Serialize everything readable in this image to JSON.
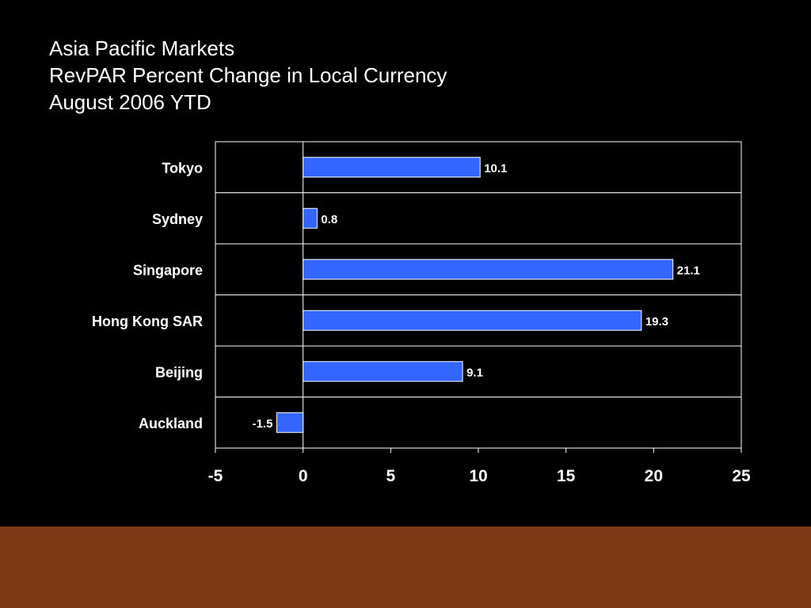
{
  "slide": {
    "title_lines": [
      "Asia Pacific Markets",
      "RevPAR Percent Change in Local Currency",
      "August 2006 YTD"
    ]
  },
  "colors": {
    "background": "#000000",
    "bar_fill": "#3366ff",
    "bar_stroke": "#ffffff",
    "grid": "#ffffff",
    "text": "#ffffff",
    "footer_band": "#7d3815"
  },
  "chart_data": {
    "type": "bar",
    "orientation": "horizontal",
    "categories": [
      "Tokyo",
      "Sydney",
      "Singapore",
      "Hong Kong SAR",
      "Beijing",
      "Auckland"
    ],
    "values": [
      10.1,
      0.8,
      21.1,
      19.3,
      9.1,
      -1.5
    ],
    "data_labels": [
      "10.1",
      "0.8",
      "21.1",
      "19.3",
      "9.1",
      "-1.5"
    ],
    "xlim": [
      -5,
      25
    ],
    "xticks": [
      -5,
      0,
      5,
      10,
      15,
      20,
      25
    ],
    "xtick_labels": [
      "-5",
      "0",
      "5",
      "10",
      "15",
      "20",
      "25"
    ],
    "grid": "horizontal category separators",
    "legend": "none"
  }
}
